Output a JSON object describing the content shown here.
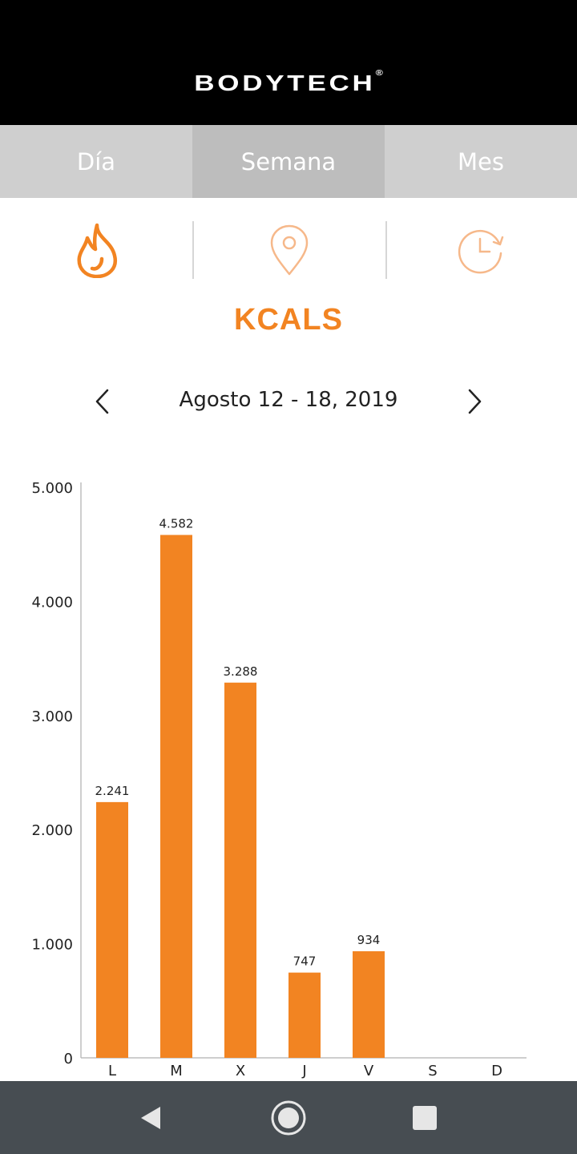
{
  "app": {
    "brand": "BODYTECH",
    "brand_mark": "®"
  },
  "tabs": [
    {
      "label": "Día",
      "active": false
    },
    {
      "label": "Semana",
      "active": true
    },
    {
      "label": "Mes",
      "active": false
    }
  ],
  "metric_icons": [
    {
      "icon": "flame-icon",
      "selected": true
    },
    {
      "icon": "location-pin-icon",
      "selected": false
    },
    {
      "icon": "clock-refresh-icon",
      "selected": false
    }
  ],
  "metric_title": "KCALS",
  "date_range": {
    "label": "Agosto 12 - 18, 2019",
    "prev_icon": "chevron-left-icon",
    "next_icon": "chevron-right-icon"
  },
  "colors": {
    "accent": "#f28422",
    "header_bg": "#000000",
    "tab_bg": "#cfcfcf",
    "tab_active_bg": "#bdbdbd",
    "navbar_bg": "#474d52"
  },
  "chart_data": {
    "type": "bar",
    "categories": [
      "L",
      "M",
      "X",
      "J",
      "V",
      "S",
      "D"
    ],
    "values": [
      2241,
      4582,
      3288,
      747,
      934,
      null,
      null
    ],
    "data_labels": [
      "2.241",
      "4.582",
      "3.288",
      "747",
      "934",
      "",
      ""
    ],
    "ylim": [
      0,
      5000
    ],
    "y_ticks": [
      0,
      1000,
      2000,
      3000,
      4000,
      5000
    ],
    "y_tick_labels": [
      "0",
      "1.000",
      "2.000",
      "3.000",
      "4.000",
      "5.000"
    ],
    "grid": false,
    "bar_color": "#f28422"
  },
  "system_nav": [
    {
      "icon": "back-triangle-icon"
    },
    {
      "icon": "home-circle-icon"
    },
    {
      "icon": "recents-square-icon"
    }
  ]
}
